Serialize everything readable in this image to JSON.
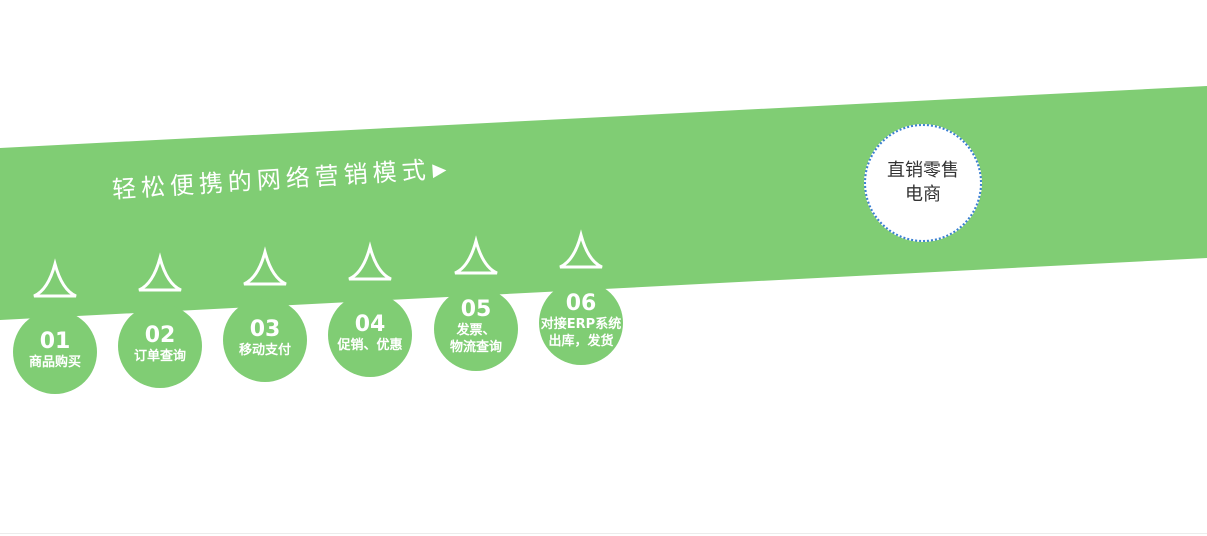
{
  "tagline": {
    "text": "轻松便携的网络营销模式",
    "arrow": "▶"
  },
  "steps": [
    {
      "num": "01",
      "label_line1": "商品购买",
      "label_line2": ""
    },
    {
      "num": "02",
      "label_line1": "订单查询",
      "label_line2": ""
    },
    {
      "num": "03",
      "label_line1": "移动支付",
      "label_line2": ""
    },
    {
      "num": "04",
      "label_line1": "促销、优惠",
      "label_line2": ""
    },
    {
      "num": "05",
      "label_line1": "发票、",
      "label_line2": "物流查询"
    },
    {
      "num": "06",
      "label_line1": "对接ERP系统",
      "label_line2": "出库，发货"
    }
  ],
  "badge": {
    "line1": "直销零售",
    "line2": "电商"
  },
  "colors": {
    "band": "#80cd74",
    "badge_border": "#3b7fd2"
  }
}
